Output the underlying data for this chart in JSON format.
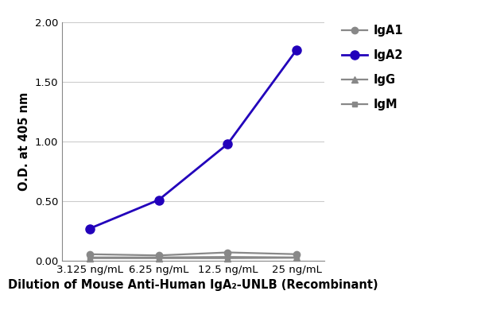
{
  "x_labels": [
    "3.125 ng/mL",
    "6.25 ng/mL",
    "12.5 ng/mL",
    "25 ng/mL"
  ],
  "x_positions": [
    0,
    1,
    2,
    3
  ],
  "series": [
    {
      "label": "IgA1",
      "values": [
        0.055,
        0.045,
        0.07,
        0.055
      ],
      "color": "#888888",
      "marker": "o",
      "markersize": 6,
      "linewidth": 1.6,
      "zorder": 3
    },
    {
      "label": "IgA2",
      "values": [
        0.27,
        0.51,
        0.98,
        1.77
      ],
      "color": "#2200BB",
      "marker": "o",
      "markersize": 8,
      "linewidth": 2.0,
      "zorder": 5
    },
    {
      "label": "IgG",
      "values": [
        0.022,
        0.022,
        0.022,
        0.025
      ],
      "color": "#888888",
      "marker": "^",
      "markersize": 6,
      "linewidth": 1.6,
      "zorder": 2
    },
    {
      "label": "IgM",
      "values": [
        0.028,
        0.028,
        0.032,
        0.028
      ],
      "color": "#888888",
      "marker": "s",
      "markersize": 5,
      "linewidth": 1.6,
      "zorder": 2
    }
  ],
  "ylabel": "O.D. at 405 nm",
  "xlabel": "Dilution of Mouse Anti-Human IgA₂-UNLB (Recombinant)",
  "ylim": [
    0.0,
    2.0
  ],
  "yticks": [
    0.0,
    0.5,
    1.0,
    1.5,
    2.0
  ],
  "background_color": "#ffffff",
  "grid_color": "#cccccc",
  "ylabel_fontsize": 10.5,
  "xlabel_fontsize": 10.5,
  "legend_fontsize": 10.5,
  "tick_fontsize": 9.5,
  "figwidth": 6.0,
  "figheight": 4.0,
  "dpi": 100
}
